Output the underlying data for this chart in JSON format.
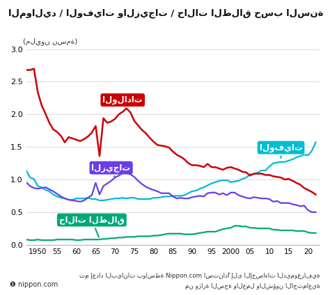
{
  "title": "المواليد / الوفيات والزيجات / حالات الطلاق حسب السنة",
  "ylabel": "(مليون نسمة)",
  "footnote1": "تم إعداد البيانات بواسطة Nippon.com استنادًا إلى الإحصاءات الديموغرافية",
  "footnote2": "من وزارة الصحة والعمل والشؤون الاجتماعية",
  "xlabel_ticks": [
    "1950",
    "55",
    "60",
    "65",
    "70",
    "75",
    "80",
    "85",
    "90",
    "95",
    "2000",
    "05",
    "10",
    "15",
    "20"
  ],
  "xlim": [
    1947,
    2023
  ],
  "ylim": [
    0,
    3.0
  ],
  "yticks": [
    0,
    0.5,
    1.0,
    1.5,
    2.0,
    2.5,
    3.0
  ],
  "births_color": "#cc0000",
  "deaths_color": "#00bcd4",
  "marriages_color": "#6a3de8",
  "divorces_color": "#00a878",
  "background_color": "#ffffff",
  "label_births": "الولادات",
  "label_deaths": "الوفيات",
  "label_marriages": "الزيجات",
  "label_divorces": "حالات الطلاق",
  "births": {
    "years": [
      1947,
      1948,
      1949,
      1950,
      1951,
      1952,
      1953,
      1954,
      1955,
      1956,
      1957,
      1958,
      1959,
      1960,
      1961,
      1962,
      1963,
      1964,
      1965,
      1966,
      1967,
      1968,
      1969,
      1970,
      1971,
      1972,
      1973,
      1974,
      1975,
      1976,
      1977,
      1978,
      1979,
      1980,
      1981,
      1982,
      1983,
      1984,
      1985,
      1986,
      1987,
      1988,
      1989,
      1990,
      1991,
      1992,
      1993,
      1994,
      1995,
      1996,
      1997,
      1998,
      1999,
      2000,
      2001,
      2002,
      2003,
      2004,
      2005,
      2006,
      2007,
      2008,
      2009,
      2010,
      2011,
      2012,
      2013,
      2014,
      2015,
      2016,
      2017,
      2018,
      2019,
      2020,
      2021,
      2022
    ],
    "values": [
      2.68,
      2.68,
      2.7,
      2.34,
      2.14,
      2.01,
      1.87,
      1.77,
      1.73,
      1.67,
      1.57,
      1.65,
      1.63,
      1.61,
      1.59,
      1.62,
      1.66,
      1.72,
      1.82,
      1.36,
      1.94,
      1.87,
      1.89,
      1.93,
      2.0,
      2.04,
      2.09,
      2.03,
      1.9,
      1.83,
      1.76,
      1.71,
      1.64,
      1.58,
      1.53,
      1.52,
      1.51,
      1.49,
      1.43,
      1.38,
      1.35,
      1.31,
      1.25,
      1.22,
      1.22,
      1.21,
      1.19,
      1.24,
      1.19,
      1.19,
      1.17,
      1.15,
      1.18,
      1.19,
      1.17,
      1.15,
      1.12,
      1.11,
      1.06,
      1.09,
      1.09,
      1.09,
      1.07,
      1.07,
      1.05,
      1.04,
      1.03,
      1.0,
      1.01,
      0.98,
      0.95,
      0.92,
      0.87,
      0.84,
      0.81,
      0.77
    ]
  },
  "deaths": {
    "years": [
      1947,
      1948,
      1949,
      1950,
      1951,
      1952,
      1953,
      1954,
      1955,
      1956,
      1957,
      1958,
      1959,
      1960,
      1961,
      1962,
      1963,
      1964,
      1965,
      1966,
      1967,
      1968,
      1969,
      1970,
      1971,
      1972,
      1973,
      1974,
      1975,
      1976,
      1977,
      1978,
      1979,
      1980,
      1981,
      1982,
      1983,
      1984,
      1985,
      1986,
      1987,
      1988,
      1989,
      1990,
      1991,
      1992,
      1993,
      1994,
      1995,
      1996,
      1997,
      1998,
      1999,
      2000,
      2001,
      2002,
      2003,
      2004,
      2005,
      2006,
      2007,
      2008,
      2009,
      2010,
      2011,
      2012,
      2013,
      2014,
      2015,
      2016,
      2017,
      2018,
      2019,
      2020,
      2021,
      2022
    ],
    "values": [
      1.14,
      1.03,
      1.01,
      0.9,
      0.88,
      0.84,
      0.82,
      0.77,
      0.74,
      0.72,
      0.71,
      0.69,
      0.69,
      0.71,
      0.71,
      0.71,
      0.72,
      0.7,
      0.7,
      0.68,
      0.68,
      0.69,
      0.7,
      0.71,
      0.71,
      0.72,
      0.71,
      0.72,
      0.72,
      0.7,
      0.7,
      0.7,
      0.7,
      0.72,
      0.72,
      0.73,
      0.74,
      0.74,
      0.75,
      0.75,
      0.75,
      0.76,
      0.79,
      0.82,
      0.83,
      0.86,
      0.88,
      0.91,
      0.94,
      0.96,
      0.98,
      0.99,
      0.99,
      0.96,
      0.97,
      0.98,
      1.01,
      1.03,
      1.08,
      1.08,
      1.11,
      1.14,
      1.14,
      1.2,
      1.25,
      1.26,
      1.27,
      1.27,
      1.29,
      1.31,
      1.34,
      1.36,
      1.38,
      1.37,
      1.44,
      1.57
    ]
  },
  "marriages": {
    "years": [
      1947,
      1948,
      1949,
      1950,
      1951,
      1952,
      1953,
      1954,
      1955,
      1956,
      1957,
      1958,
      1959,
      1960,
      1961,
      1962,
      1963,
      1964,
      1965,
      1966,
      1967,
      1968,
      1969,
      1970,
      1971,
      1972,
      1973,
      1974,
      1975,
      1976,
      1977,
      1978,
      1979,
      1980,
      1981,
      1982,
      1983,
      1984,
      1985,
      1986,
      1987,
      1988,
      1989,
      1990,
      1991,
      1992,
      1993,
      1994,
      1995,
      1996,
      1997,
      1998,
      1999,
      2000,
      2001,
      2002,
      2003,
      2004,
      2005,
      2006,
      2007,
      2008,
      2009,
      2010,
      2011,
      2012,
      2013,
      2014,
      2015,
      2016,
      2017,
      2018,
      2019,
      2020,
      2021,
      2022
    ],
    "values": [
      0.96,
      0.9,
      0.87,
      0.86,
      0.87,
      0.88,
      0.85,
      0.82,
      0.78,
      0.74,
      0.71,
      0.69,
      0.68,
      0.67,
      0.66,
      0.68,
      0.72,
      0.76,
      0.95,
      0.77,
      0.9,
      0.94,
      0.98,
      1.03,
      1.06,
      1.1,
      1.1,
      1.08,
      1.04,
      0.98,
      0.93,
      0.89,
      0.86,
      0.84,
      0.82,
      0.79,
      0.79,
      0.79,
      0.74,
      0.71,
      0.72,
      0.71,
      0.71,
      0.73,
      0.74,
      0.75,
      0.74,
      0.79,
      0.8,
      0.8,
      0.77,
      0.79,
      0.76,
      0.8,
      0.8,
      0.76,
      0.74,
      0.72,
      0.71,
      0.73,
      0.72,
      0.71,
      0.71,
      0.7,
      0.66,
      0.67,
      0.64,
      0.64,
      0.64,
      0.62,
      0.61,
      0.59,
      0.6,
      0.53,
      0.5,
      0.5
    ]
  },
  "divorces": {
    "years": [
      1947,
      1948,
      1949,
      1950,
      1951,
      1952,
      1953,
      1954,
      1955,
      1956,
      1957,
      1958,
      1959,
      1960,
      1961,
      1962,
      1963,
      1964,
      1965,
      1966,
      1967,
      1968,
      1969,
      1970,
      1971,
      1972,
      1973,
      1974,
      1975,
      1976,
      1977,
      1978,
      1979,
      1980,
      1981,
      1982,
      1983,
      1984,
      1985,
      1986,
      1987,
      1988,
      1989,
      1990,
      1991,
      1992,
      1993,
      1994,
      1995,
      1996,
      1997,
      1998,
      1999,
      2000,
      2001,
      2002,
      2003,
      2004,
      2005,
      2006,
      2007,
      2008,
      2009,
      2010,
      2011,
      2012,
      2013,
      2014,
      2015,
      2016,
      2017,
      2018,
      2019,
      2020,
      2021,
      2022
    ],
    "values": [
      0.08,
      0.07,
      0.07,
      0.08,
      0.07,
      0.07,
      0.07,
      0.07,
      0.08,
      0.08,
      0.08,
      0.08,
      0.08,
      0.07,
      0.07,
      0.08,
      0.08,
      0.08,
      0.08,
      0.08,
      0.09,
      0.09,
      0.1,
      0.1,
      0.11,
      0.11,
      0.12,
      0.12,
      0.12,
      0.13,
      0.13,
      0.13,
      0.13,
      0.14,
      0.14,
      0.15,
      0.16,
      0.17,
      0.17,
      0.17,
      0.17,
      0.16,
      0.16,
      0.16,
      0.17,
      0.18,
      0.19,
      0.2,
      0.2,
      0.2,
      0.22,
      0.24,
      0.25,
      0.26,
      0.29,
      0.29,
      0.28,
      0.28,
      0.26,
      0.26,
      0.25,
      0.25,
      0.25,
      0.25,
      0.23,
      0.23,
      0.22,
      0.22,
      0.22,
      0.22,
      0.21,
      0.21,
      0.21,
      0.19,
      0.18,
      0.18
    ]
  }
}
